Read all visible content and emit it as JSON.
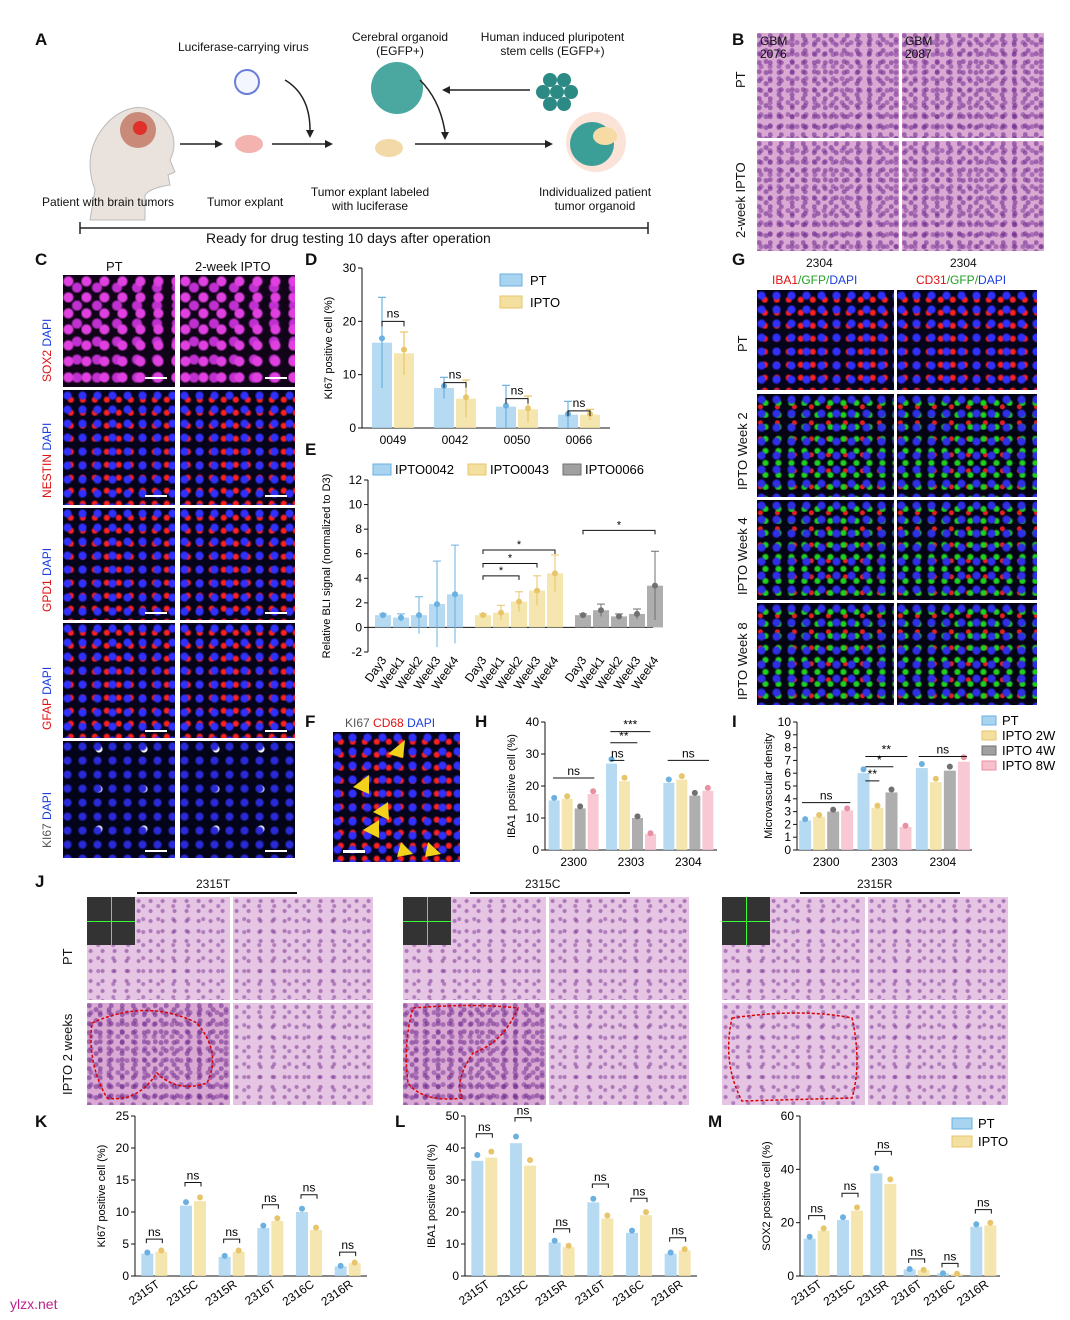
{
  "panels": {
    "A": {
      "label": "A",
      "texts": {
        "virus": "Luciferase-carrying virus",
        "organoid": "Cerebral organoid\n(EGFP+)",
        "ipsc": "Human induced pluripotent\nstem cells (EGFP+)",
        "patient": "Patient with brain tumors",
        "explant": "Tumor explant",
        "labeled": "Tumor explant labeled\nwith luciferase",
        "individual": "Individualized patient\ntumor organoid",
        "ready": "Ready for drug testing 10 days after operation"
      }
    },
    "B": {
      "label": "B",
      "samples": [
        "GBM\n2076",
        "GBM\n2087"
      ],
      "rows": [
        "PT",
        "2-week IPTO"
      ]
    },
    "C": {
      "label": "C",
      "cols": [
        "PT",
        "2-week IPTO"
      ],
      "rows": [
        {
          "marker": "SOX2",
          "stain": "DAPI"
        },
        {
          "marker": "NESTIN",
          "stain": "DAPI"
        },
        {
          "marker": "GPD1",
          "stain": "DAPI"
        },
        {
          "marker": "GFAP",
          "stain": "DAPI"
        },
        {
          "marker": "KI67",
          "stain": "DAPI"
        }
      ]
    },
    "D": {
      "label": "D"
    },
    "E": {
      "label": "E"
    },
    "F": {
      "label": "F",
      "title_parts": [
        "KI67",
        "CD68",
        "DAPI"
      ]
    },
    "G": {
      "label": "G",
      "sample": "2304",
      "col1": [
        "IBA1",
        "/GFP/",
        "DAPI"
      ],
      "col2": [
        "CD31",
        "/GFP/",
        "DAPI"
      ],
      "rows": [
        "PT",
        "IPTO Week 2",
        "IPTO Week 4",
        "IPTO Week 8"
      ]
    },
    "H": {
      "label": "H"
    },
    "I": {
      "label": "I"
    },
    "J": {
      "label": "J",
      "groups": [
        "2315T",
        "2315C",
        "2315R"
      ],
      "rows": [
        "PT",
        "IPTO 2 weeks"
      ]
    },
    "K": {
      "label": "K"
    },
    "L": {
      "label": "L"
    },
    "M": {
      "label": "M"
    }
  },
  "colors": {
    "pt": "#a8d4f0",
    "ipto": "#f3e0a0",
    "ipto_edge": "#e8c56a",
    "pt_edge": "#6ab0e0",
    "gray": "#a0a0a0",
    "pink": "#f7c0cc",
    "red": "#e01010",
    "blue": "#1a3ee0",
    "green": "#20a020"
  },
  "watermark": "ylzx.net",
  "chart_data": [
    {
      "id": "D",
      "type": "bar",
      "ylabel": "KI67 positive cell (%)",
      "ylim": [
        0,
        30
      ],
      "yticks": [
        0,
        10,
        20,
        30
      ],
      "categories": [
        "0049",
        "0042",
        "0050",
        "0066"
      ],
      "series": [
        {
          "name": "PT",
          "values": [
            16,
            7.5,
            4,
            2.5
          ],
          "err": [
            8.5,
            2,
            4,
            2.5
          ]
        },
        {
          "name": "IPTO",
          "values": [
            14,
            5.5,
            3.5,
            2.5
          ],
          "err": [
            4,
            3.5,
            2.5,
            1
          ]
        }
      ],
      "annotations": [
        "ns",
        "ns",
        "ns",
        "ns"
      ],
      "legend": "top-right"
    },
    {
      "id": "E",
      "type": "bar",
      "ylabel": "Relative BLI signal (normalized to D3)",
      "ylim": [
        -2,
        12
      ],
      "yticks": [
        -2,
        0,
        2,
        4,
        6,
        8,
        10,
        12
      ],
      "legend": [
        "IPTO0042",
        "IPTO0043",
        "IPTO0066"
      ],
      "groups": [
        {
          "name": "IPTO0042",
          "categories": [
            "Day3",
            "Week1",
            "Week2",
            "Week3",
            "Week4"
          ],
          "values": [
            1,
            0.8,
            1,
            1.9,
            2.7
          ],
          "err": [
            0.1,
            0.3,
            1.5,
            3.5,
            4
          ]
        },
        {
          "name": "IPTO0043",
          "categories": [
            "Day3",
            "Week1",
            "Week2",
            "Week3",
            "Week4"
          ],
          "values": [
            1,
            1.2,
            2.1,
            3,
            4.4
          ],
          "err": [
            0.1,
            0.6,
            0.8,
            1.2,
            1.5
          ]
        },
        {
          "name": "IPTO0066",
          "categories": [
            "Day3",
            "Week1",
            "Week2",
            "Week3",
            "Week4"
          ],
          "values": [
            1,
            1.4,
            0.9,
            1.1,
            3.4
          ],
          "err": [
            0.1,
            0.5,
            0.2,
            0.4,
            2.8
          ]
        }
      ],
      "annotations": [
        "*",
        "*",
        "*",
        "*"
      ]
    },
    {
      "id": "H",
      "type": "bar",
      "ylabel": "IBA1 positive cell (%)",
      "ylim": [
        0,
        40
      ],
      "yticks": [
        0,
        10,
        20,
        30,
        40
      ],
      "categories": [
        "2300",
        "2303",
        "2304"
      ],
      "series": [
        {
          "name": "PT",
          "values": [
            15.5,
            27,
            21
          ]
        },
        {
          "name": "IPTO 2W",
          "values": [
            16,
            21.5,
            22
          ]
        },
        {
          "name": "IPTO 4W",
          "values": [
            13,
            10,
            17
          ]
        },
        {
          "name": "IPTO 8W",
          "values": [
            17.5,
            5,
            18.5
          ]
        }
      ],
      "annotations": [
        "ns",
        "ns",
        "**",
        "***",
        "ns"
      ]
    },
    {
      "id": "I",
      "type": "bar",
      "ylabel": "Microvascular density",
      "ylim": [
        0,
        10
      ],
      "yticks": [
        0,
        1,
        2,
        3,
        4,
        5,
        6,
        7,
        8,
        9,
        10
      ],
      "categories": [
        "2300",
        "2303",
        "2304"
      ],
      "legend": [
        "PT",
        "IPTO 2W",
        "IPTO 4W",
        "IPTO 8W"
      ],
      "series": [
        {
          "name": "PT",
          "values": [
            2.3,
            6,
            6.4
          ]
        },
        {
          "name": "IPTO 2W",
          "values": [
            2.6,
            3.3,
            5.3
          ]
        },
        {
          "name": "IPTO 4W",
          "values": [
            3,
            4.5,
            6.2
          ]
        },
        {
          "name": "IPTO 8W",
          "values": [
            3.1,
            1.8,
            6.9
          ]
        }
      ],
      "annotations": [
        "ns",
        "**",
        "*",
        "**",
        "ns"
      ]
    },
    {
      "id": "K",
      "type": "bar",
      "ylabel": "KI67 positive cell (%)",
      "ylim": [
        0,
        25
      ],
      "yticks": [
        0,
        5,
        10,
        15,
        20,
        25
      ],
      "categories": [
        "2315T",
        "2315C",
        "2315R",
        "2316T",
        "2316C",
        "2316R"
      ],
      "series": [
        {
          "name": "PT",
          "values": [
            3.5,
            11,
            3,
            7.5,
            10,
            1.5
          ]
        },
        {
          "name": "IPTO",
          "values": [
            3.8,
            11.7,
            3.8,
            8.6,
            7.2,
            2
          ]
        }
      ],
      "annotations": [
        "ns",
        "ns",
        "ns",
        "ns",
        "ns",
        "ns"
      ]
    },
    {
      "id": "L",
      "type": "bar",
      "ylabel": "IBA1 positive cell (%)",
      "ylim": [
        0,
        50
      ],
      "yticks": [
        0,
        10,
        20,
        30,
        40,
        50
      ],
      "categories": [
        "2315T",
        "2315C",
        "2315R",
        "2316T",
        "2316C",
        "2316R"
      ],
      "series": [
        {
          "name": "PT",
          "values": [
            36,
            41.5,
            10.5,
            23,
            13.5,
            7
          ]
        },
        {
          "name": "IPTO",
          "values": [
            37,
            34.5,
            9,
            18,
            19,
            8
          ]
        }
      ],
      "annotations": [
        "ns",
        "ns",
        "ns",
        "ns",
        "ns",
        "ns"
      ]
    },
    {
      "id": "M",
      "type": "bar",
      "ylabel": "SOX2 positive cell (%)",
      "ylim": [
        0,
        60
      ],
      "yticks": [
        0,
        20,
        40,
        60
      ],
      "categories": [
        "2315T",
        "2315C",
        "2315R",
        "2316T",
        "2316C",
        "2316R"
      ],
      "series": [
        {
          "name": "PT",
          "values": [
            14,
            21,
            38.5,
            2.5,
            1,
            18.5
          ]
        },
        {
          "name": "IPTO",
          "values": [
            17,
            24.5,
            34.5,
            2.2,
            0.8,
            19
          ]
        }
      ],
      "annotations": [
        "ns",
        "ns",
        "ns",
        "ns",
        "ns",
        "ns"
      ],
      "legend": [
        "PT",
        "IPTO"
      ]
    }
  ]
}
